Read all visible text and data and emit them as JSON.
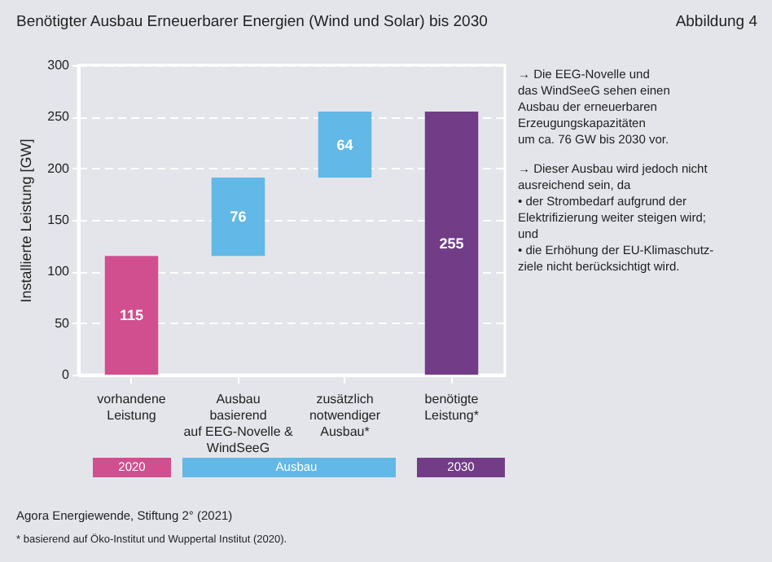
{
  "chart_data": {
    "type": "bar",
    "title": "Benötigter Ausbau Erneuerbarer Energien (Wind und Solar) bis 2030",
    "categories": [
      "vorhandene\nLeistung",
      "Ausbau\nbasierend\nauf EEG-Novelle &\nWindSeeG",
      "zusätzlich\nnotwendiger\nAusbau*",
      "benötigte\nLeistung*"
    ],
    "values": [
      115,
      76,
      64,
      255
    ],
    "base": [
      0,
      115,
      191,
      0
    ],
    "colors": [
      "#d14f8e",
      "#62b8e6",
      "#62b8e6",
      "#723d86"
    ],
    "data_labels": true,
    "ylabel": "Installierte Leistung [GW]",
    "ylim": [
      0,
      300
    ],
    "yticks": [
      0,
      50,
      100,
      150,
      200,
      250,
      300
    ],
    "grid": "y",
    "annotations": [
      "Abbildung 4",
      "→ Die EEG-Novelle und\n   das WindSeeG sehen einen\n   Ausbau der erneuerbaren\n   Erzeugungskapazitäten\n   um ca. 76 GW bis 2030 vor.",
      "→ Dieser Ausbau wird jedoch nicht\n   ausreichend sein, da\n     • der Strombedarf aufgrund der\n       Elektrifizierung weiter steigen wird;\n       und\n     • die Erhöhung der EU-Klimaschutz-\n       ziele nicht berücksichtigt wird.",
      "2020",
      "Ausbau",
      "2030",
      "Agora Energiewende, Stiftung 2° (2021)",
      "* basierend auf Öko-Institut und Wuppertal Institut (2020)."
    ]
  }
}
